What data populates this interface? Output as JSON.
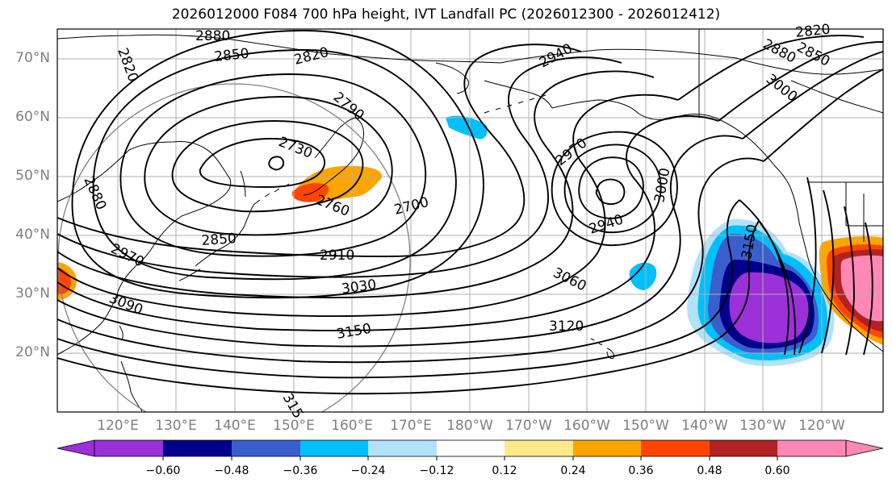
{
  "title": "2026012000 F084 700 hPa height, IVT Landfall PC (2026012300 - 2026012412)",
  "lat_labels": [
    "70°N",
    "60°N",
    "50°N",
    "40°N",
    "30°N",
    "20°N"
  ],
  "lon_labels": [
    "120°E",
    "130°E",
    "140°E",
    "150°E",
    "160°E",
    "170°E",
    "180°W",
    "170°W",
    "160°W",
    "150°W",
    "140°W",
    "130°W",
    "120°W"
  ],
  "colorbar": {
    "ticks": [
      "−0.60",
      "−0.48",
      "−0.36",
      "−0.24",
      "−0.12",
      "0.12",
      "0.24",
      "0.36",
      "0.48",
      "0.60"
    ],
    "colors": [
      "#9b30d8",
      "#00008b",
      "#3a5fcd",
      "#00bfff",
      "#b2e2f8",
      "#ffffff",
      "#ffe98a",
      "#ffa500",
      "#ff4500",
      "#b22222",
      "#ff89b4"
    ]
  },
  "contour_labels": [
    "2880",
    "2820",
    "2850",
    "2820",
    "2790",
    "2730",
    "2760",
    "2700",
    "2940",
    "2970",
    "2940",
    "3000",
    "2880",
    "2850",
    "2820",
    "3000",
    "2880",
    "2850",
    "2910",
    "3030",
    "2970",
    "3090",
    "3150",
    "3060",
    "3120",
    "3150",
    "315"
  ]
}
